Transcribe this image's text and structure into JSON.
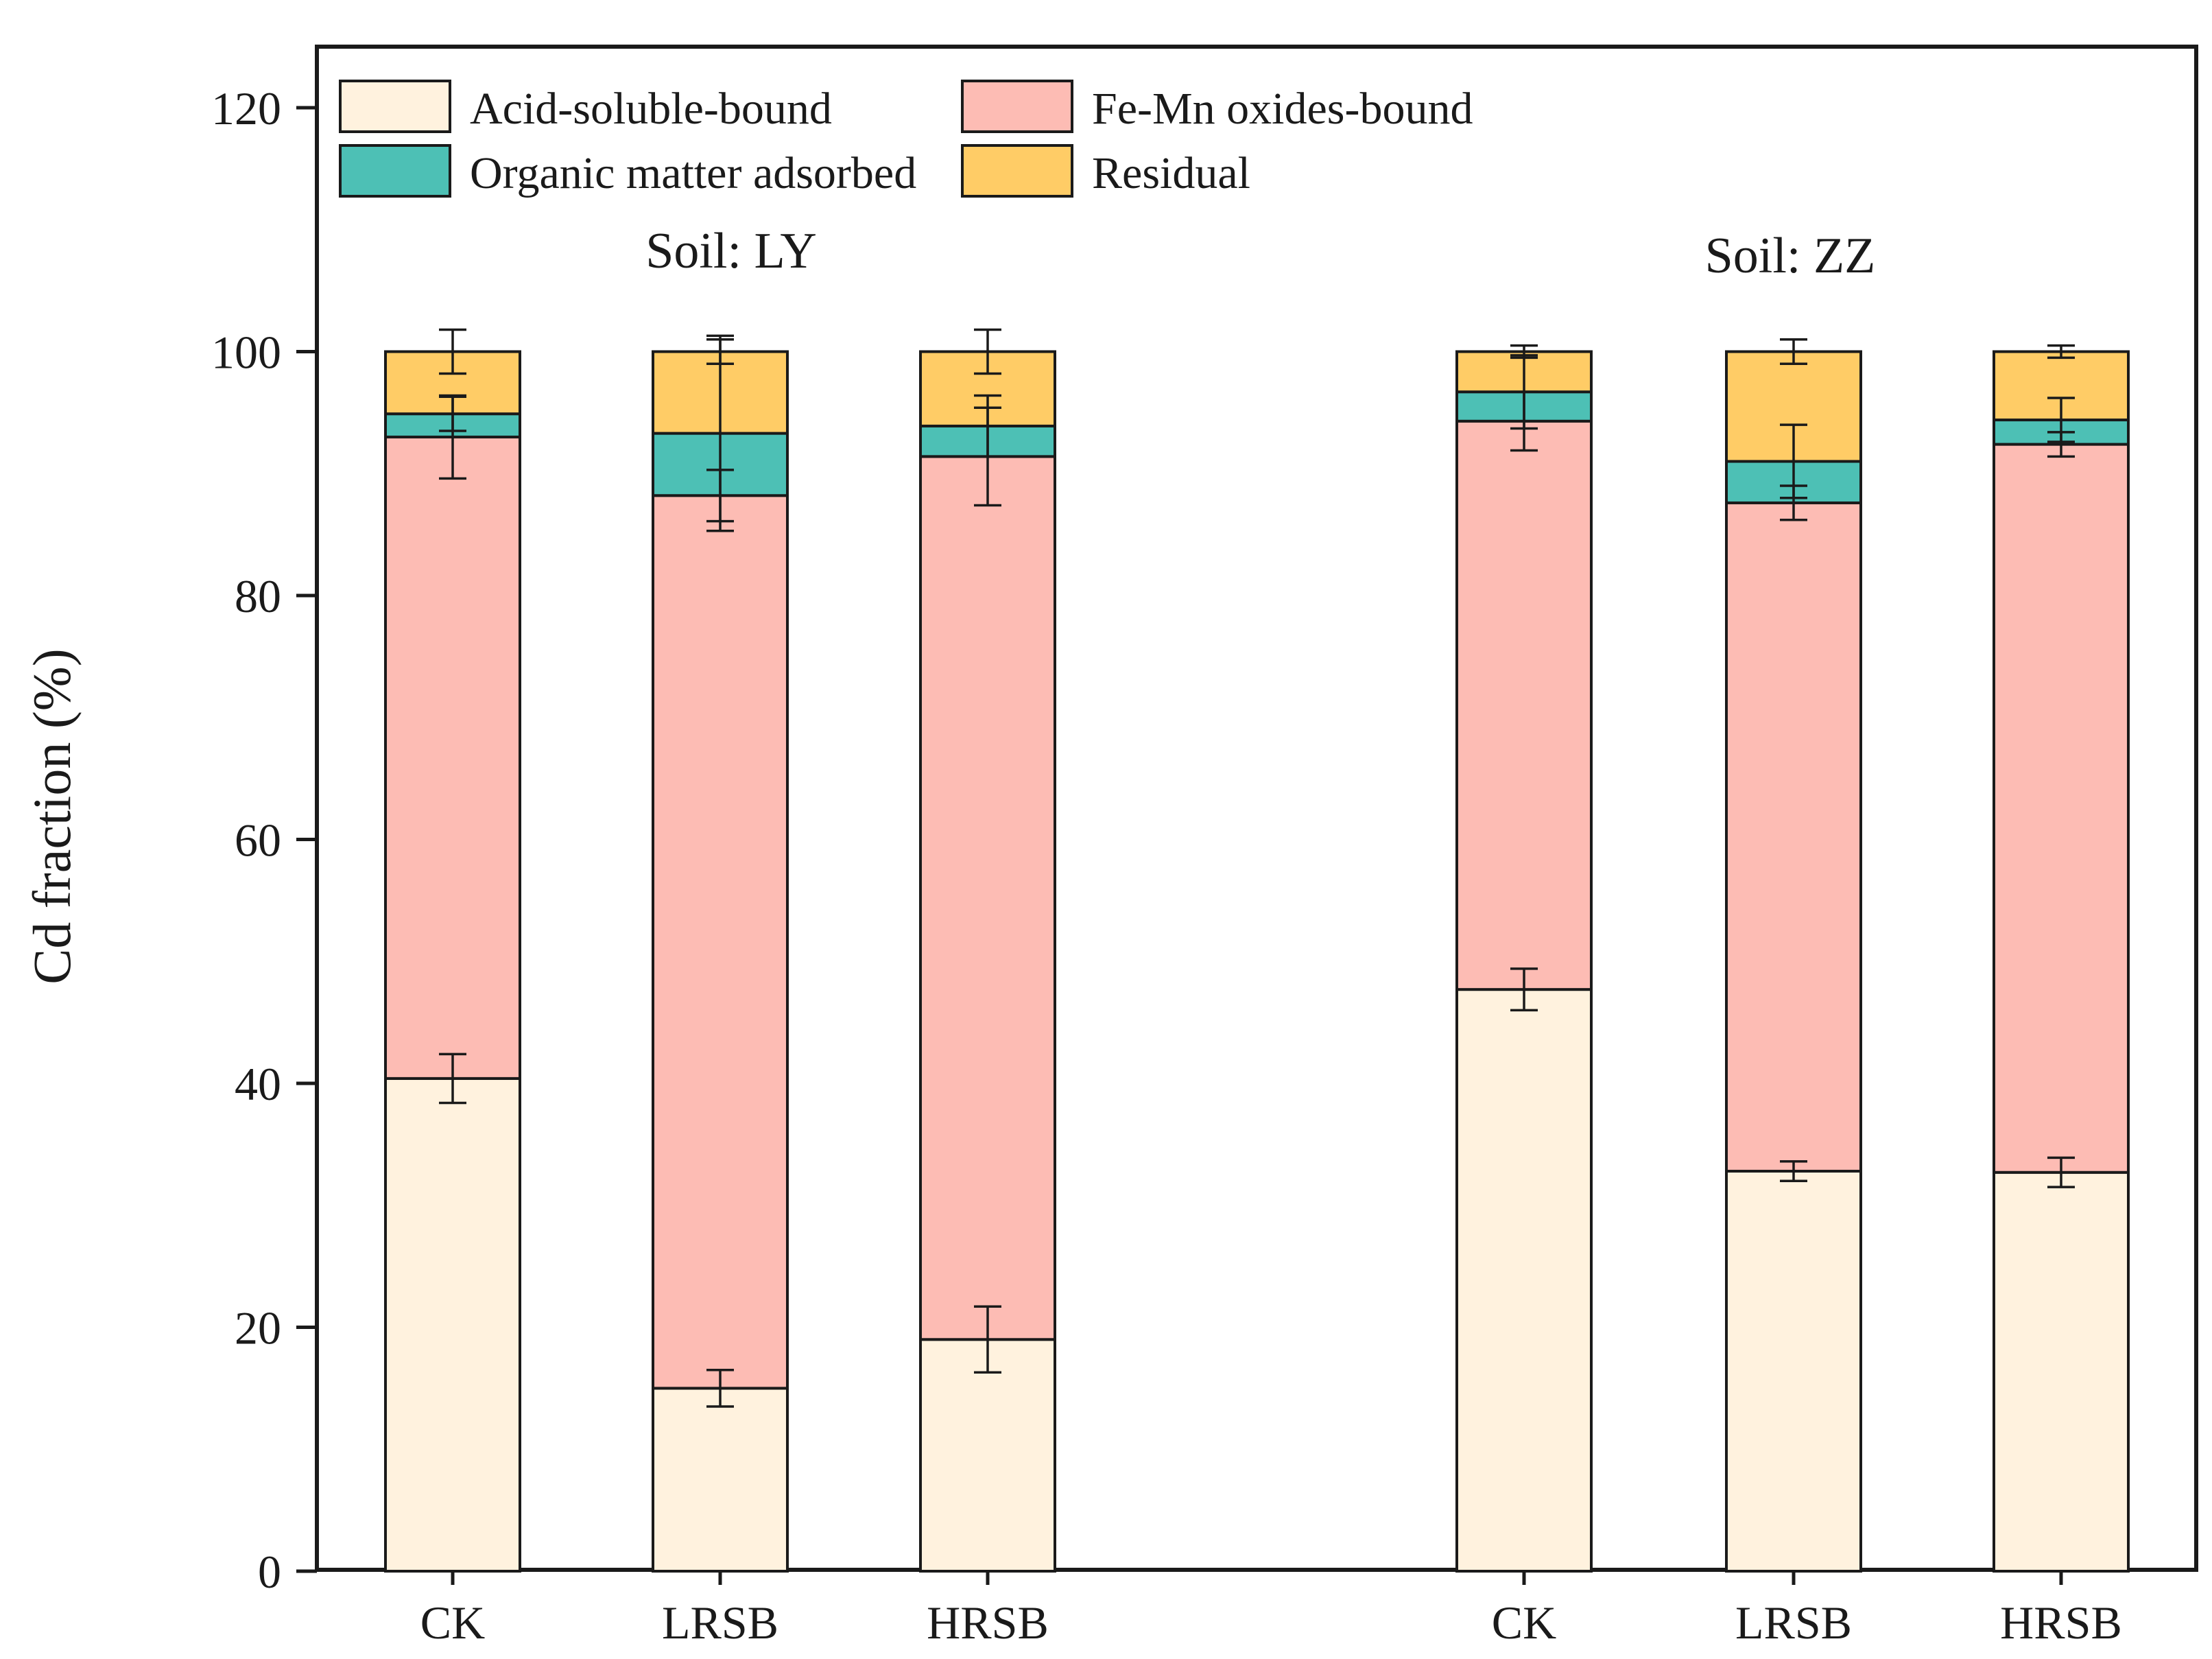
{
  "chart_data": {
    "type": "bar",
    "stacked": true,
    "ylabel": "Cd fraction (%)",
    "ylim": [
      0,
      120
    ],
    "yticks": [
      0,
      20,
      40,
      60,
      80,
      100,
      120
    ],
    "categories": [
      "CK",
      "LRSB",
      "HRSB",
      "CK",
      "LRSB",
      "HRSB"
    ],
    "groups": [
      {
        "label": "Soil: LY",
        "category_indices": [
          0,
          1,
          2
        ]
      },
      {
        "label": "Soil: ZZ",
        "category_indices": [
          3,
          4,
          5
        ]
      }
    ],
    "legend": {
      "position": "top-left"
    },
    "series": [
      {
        "name": "Acid-soluble-bound",
        "color": "#FFF2DE",
        "values": [
          40.4,
          15.0,
          19.0,
          47.7,
          32.8,
          32.7
        ],
        "errors": [
          2.0,
          1.5,
          2.7,
          1.7,
          0.8,
          1.2
        ]
      },
      {
        "name": "Fe-Mn oxides-bound",
        "color": "#FDBCB4",
        "values": [
          52.6,
          73.2,
          72.4,
          46.6,
          54.8,
          59.7
        ],
        "errors": [
          3.4,
          2.1,
          4.0,
          2.4,
          1.4,
          1.0
        ]
      },
      {
        "name": "Organic matter adsorbed",
        "color": "#4DC0B5",
        "values": [
          1.9,
          5.1,
          2.5,
          2.4,
          3.4,
          2.0
        ],
        "errors": [
          1.4,
          8.0,
          2.5,
          3.0,
          3.0,
          1.8
        ]
      },
      {
        "name": "Residual",
        "color": "#FFCC66",
        "values": [
          5.1,
          6.7,
          6.1,
          3.3,
          9.0,
          5.6
        ],
        "errors": [
          1.8,
          1.0,
          1.8,
          0.5,
          1.0,
          0.5
        ]
      }
    ]
  }
}
